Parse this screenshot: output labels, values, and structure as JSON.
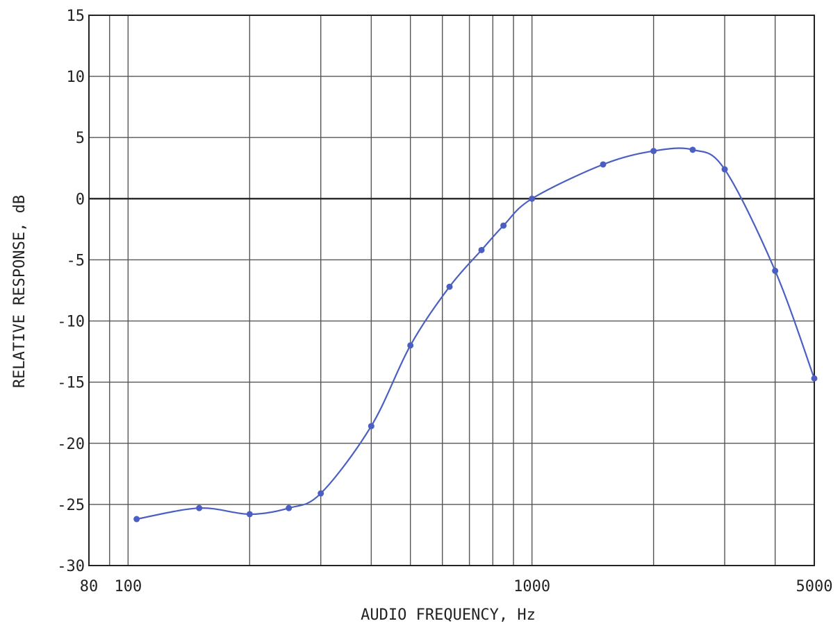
{
  "chart_data": {
    "type": "line",
    "title": "",
    "xlabel": "AUDIO FREQUENCY, Hz",
    "ylabel": "RELATIVE RESPONSE, dB",
    "xscale": "log",
    "xlim": [
      80,
      5000
    ],
    "ylim": [
      -30,
      15
    ],
    "grid": true,
    "x_tick_labels": [
      {
        "value": 80,
        "label": "80"
      },
      {
        "value": 100,
        "label": "100"
      },
      {
        "value": 1000,
        "label": "1000"
      },
      {
        "value": 5000,
        "label": "5000"
      }
    ],
    "x_gridlines": [
      90,
      100,
      200,
      300,
      400,
      500,
      600,
      700,
      800,
      900,
      1000,
      2000,
      3000,
      4000
    ],
    "y_ticks": [
      15,
      10,
      5,
      0,
      -5,
      -10,
      -15,
      -20,
      -25,
      -30
    ],
    "series": [
      {
        "color": "#4a5fc1",
        "x": [
          105,
          150,
          200,
          250,
          300,
          400,
          500,
          625,
          750,
          850,
          1000,
          1500,
          2000,
          2500,
          3000,
          4000,
          5000
        ],
        "y": [
          -26.2,
          -25.3,
          -25.8,
          -25.3,
          -24.1,
          -18.6,
          -12.0,
          -7.2,
          -4.2,
          -2.2,
          0.0,
          2.8,
          3.9,
          4.0,
          2.4,
          -5.9,
          -14.7
        ]
      }
    ]
  }
}
